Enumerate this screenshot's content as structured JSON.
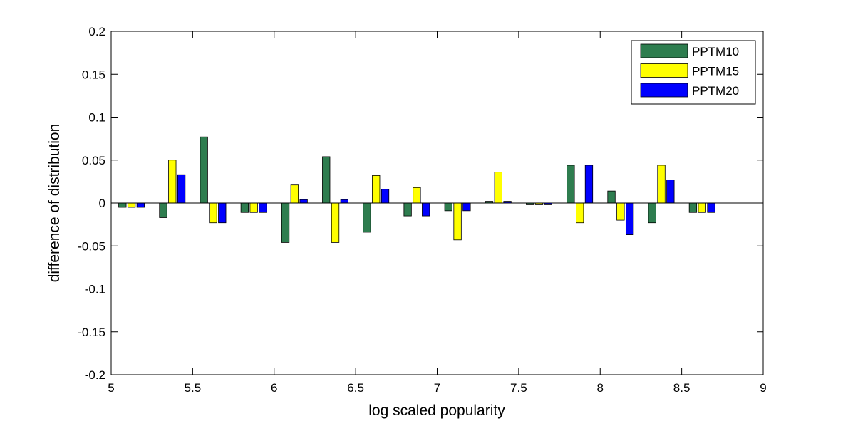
{
  "chart_data": {
    "type": "bar",
    "title": "",
    "xlabel": "log scaled popularity",
    "ylabel": "difference of distribution",
    "xlim": [
      5,
      9
    ],
    "ylim": [
      -0.2,
      0.2
    ],
    "xticks": [
      "5",
      "5.5",
      "6",
      "6.5",
      "7",
      "7.5",
      "8",
      "8.5",
      "9"
    ],
    "yticks": [
      "0.2",
      "0.15",
      "0.1",
      "0.05",
      "0",
      "-0.05",
      "-0.1",
      "-0.15",
      "-0.2"
    ],
    "grid": false,
    "legend_position": "top-right",
    "categories": [
      5.125,
      5.375,
      5.625,
      5.875,
      6.125,
      6.375,
      6.625,
      6.875,
      7.125,
      7.375,
      7.625,
      7.875,
      8.125,
      8.375,
      8.625
    ],
    "series": [
      {
        "name": "PPTM10",
        "color": "#2e7d4f",
        "values": [
          -0.005,
          -0.017,
          0.077,
          -0.011,
          -0.046,
          0.054,
          -0.034,
          -0.015,
          -0.009,
          0.002,
          -0.002,
          0.044,
          0.014,
          -0.023,
          -0.011
        ]
      },
      {
        "name": "PPTM15",
        "color": "#ffff00",
        "values": [
          -0.005,
          0.05,
          -0.023,
          -0.011,
          0.021,
          -0.046,
          0.032,
          0.018,
          -0.043,
          0.036,
          -0.002,
          -0.023,
          -0.02,
          0.044,
          -0.011
        ]
      },
      {
        "name": "PPTM20",
        "color": "#0000ff",
        "values": [
          -0.005,
          0.033,
          -0.023,
          -0.011,
          0.004,
          0.004,
          0.016,
          -0.015,
          -0.009,
          0.002,
          -0.002,
          0.044,
          -0.037,
          0.027,
          -0.011
        ]
      }
    ]
  }
}
